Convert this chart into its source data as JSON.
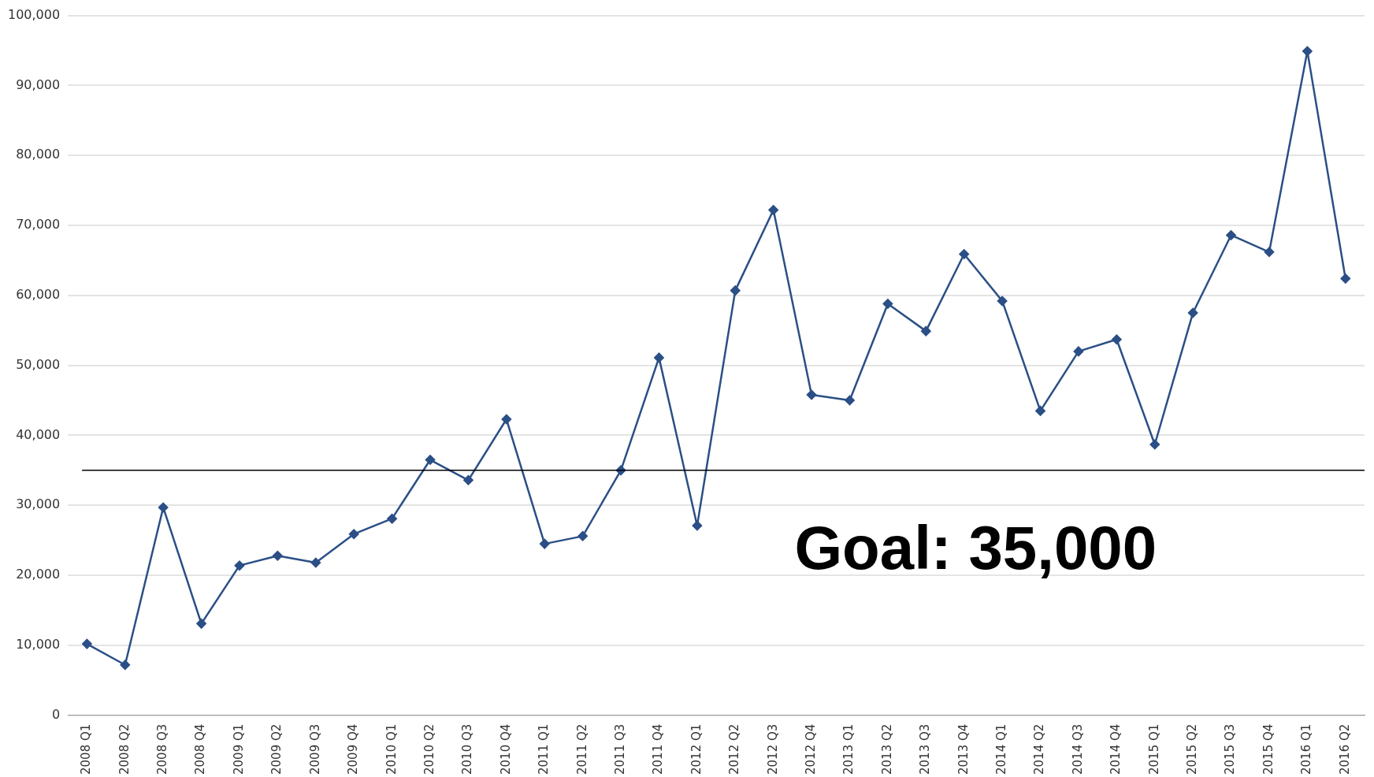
{
  "chart_data": {
    "type": "line",
    "categories": [
      "2008 Q1",
      "2008 Q2",
      "2008 Q3",
      "2008 Q4",
      "2009 Q1",
      "2009 Q2",
      "2009 Q3",
      "2009 Q4",
      "2010 Q1",
      "2010 Q2",
      "2010 Q3",
      "2010 Q4",
      "2011 Q1",
      "2011 Q2",
      "2011 Q3",
      "2011 Q4",
      "2012 Q1",
      "2012 Q2",
      "2012 Q3",
      "2012 Q4",
      "2013 Q1",
      "2013 Q2",
      "2013 Q3",
      "2013 Q4",
      "2014 Q1",
      "2014 Q2",
      "2014 Q3",
      "2014 Q4",
      "2015 Q1",
      "2015 Q2",
      "2015 Q3",
      "2015 Q4",
      "2016 Q1",
      "2016 Q2"
    ],
    "series": [
      {
        "color": "#2b4f86",
        "values": [
          10200,
          7200,
          29700,
          13100,
          21400,
          22800,
          21800,
          25900,
          28100,
          36500,
          33600,
          42300,
          24500,
          25600,
          35000,
          51100,
          27100,
          60700,
          72200,
          45800,
          45000,
          58800,
          54900,
          65900,
          59200,
          43500,
          52000,
          53700,
          38700,
          57500,
          68600,
          66200,
          94900,
          62400
        ]
      }
    ],
    "ylim": [
      0,
      100000
    ],
    "yticks": [
      0,
      {
        "value": 10000,
        "label": "10,000"
      },
      {
        "value": 20000,
        "label": "20,000"
      },
      {
        "value": 30000,
        "label": "30,000"
      },
      {
        "value": 40000,
        "label": "40,000"
      },
      {
        "value": 50000,
        "label": "50,000"
      },
      {
        "value": 60000,
        "label": "60,000"
      },
      {
        "value": 70000,
        "label": "70,000"
      },
      {
        "value": 80000,
        "label": "80,000"
      },
      {
        "value": 90000,
        "label": "90,000"
      },
      {
        "value": 100000,
        "label": "100,000"
      }
    ],
    "grid": "y",
    "legend": false,
    "marker": "diamond",
    "line_style": "solid",
    "ref_lines": [
      {
        "axis": "y",
        "value": 35000,
        "label": "Goal: 35,000",
        "color": "#000000"
      }
    ]
  }
}
